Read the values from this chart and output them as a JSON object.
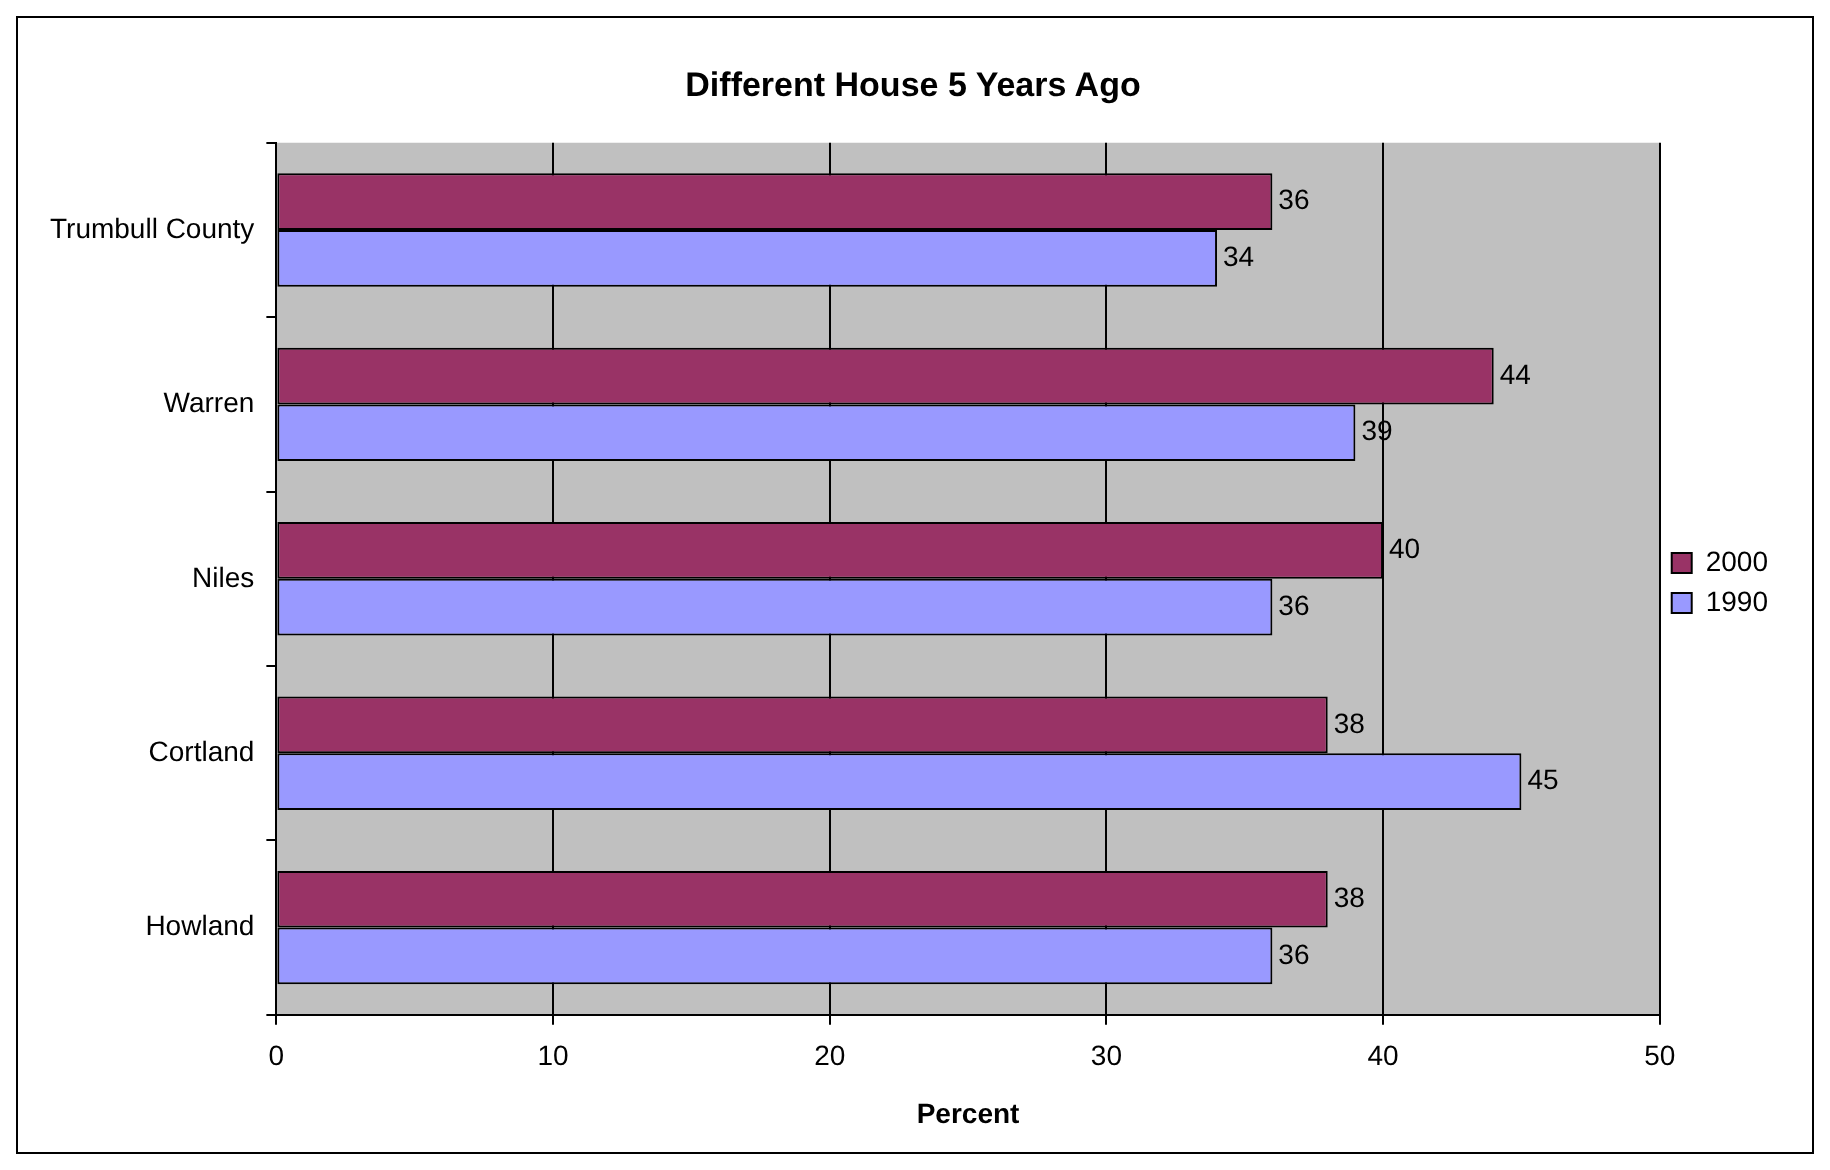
{
  "chart_data": {
    "type": "bar",
    "orientation": "horizontal",
    "title": "Different House 5 Years Ago",
    "xlabel": "Percent",
    "categories": [
      "Trumbull County",
      "Warren",
      "Niles",
      "Cortland",
      "Howland"
    ],
    "series": [
      {
        "name": "2000",
        "color": "#993366",
        "values": [
          36,
          44,
          40,
          38,
          38
        ]
      },
      {
        "name": "1990",
        "color": "#9999ff",
        "values": [
          34,
          39,
          36,
          45,
          36
        ]
      }
    ],
    "xlim": [
      0,
      50
    ],
    "xticks": [
      0,
      10,
      20,
      30,
      40,
      50
    ],
    "grid": "x",
    "legend": "right",
    "data_labels": true
  }
}
